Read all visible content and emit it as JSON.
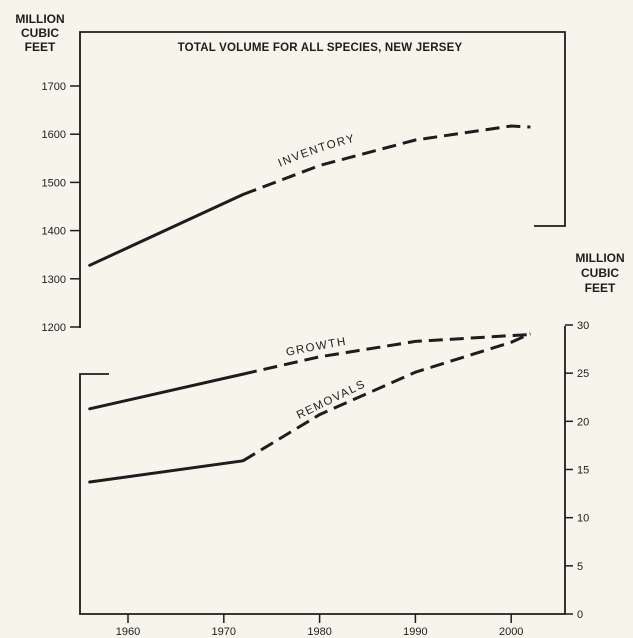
{
  "chart_data": [
    {
      "type": "line",
      "title": "TOTAL VOLUME FOR ALL SPECIES, NEW JERSEY",
      "ylabel": [
        "MILLION",
        "CUBIC",
        "FEET"
      ],
      "ylim": [
        1200,
        1700
      ],
      "yticks": [
        1200,
        1300,
        1400,
        1500,
        1600,
        1700
      ],
      "series": [
        {
          "name": "INVENTORY",
          "solid": [
            [
              1956,
              1328
            ],
            [
              1972,
              1475
            ]
          ],
          "dashed": [
            [
              1972,
              1475
            ],
            [
              1980,
              1535
            ],
            [
              1990,
              1588
            ],
            [
              2000,
              1617
            ],
            [
              2002,
              1615
            ]
          ]
        }
      ]
    },
    {
      "type": "line",
      "ylabel": [
        "MILLION",
        "CUBIC",
        "FEET"
      ],
      "ylim": [
        0,
        30
      ],
      "yticks": [
        0,
        5,
        10,
        15,
        20,
        25,
        30
      ],
      "xticks": [
        1960,
        1970,
        1980,
        1990,
        2000
      ],
      "series": [
        {
          "name": "GROWTH",
          "solid": [
            [
              1956,
              21.3
            ],
            [
              1972,
              24.9
            ]
          ],
          "dashed": [
            [
              1972,
              24.9
            ],
            [
              1980,
              26.7
            ],
            [
              1990,
              28.3
            ],
            [
              2000,
              28.9
            ],
            [
              2002,
              29.0
            ]
          ]
        },
        {
          "name": "REMOVALS",
          "solid": [
            [
              1956,
              13.7
            ],
            [
              1972,
              15.9
            ]
          ],
          "dashed": [
            [
              1972,
              15.9
            ],
            [
              1980,
              20.7
            ],
            [
              1990,
              25.1
            ],
            [
              2000,
              28.2
            ],
            [
              2002,
              29.1
            ]
          ]
        }
      ]
    }
  ]
}
